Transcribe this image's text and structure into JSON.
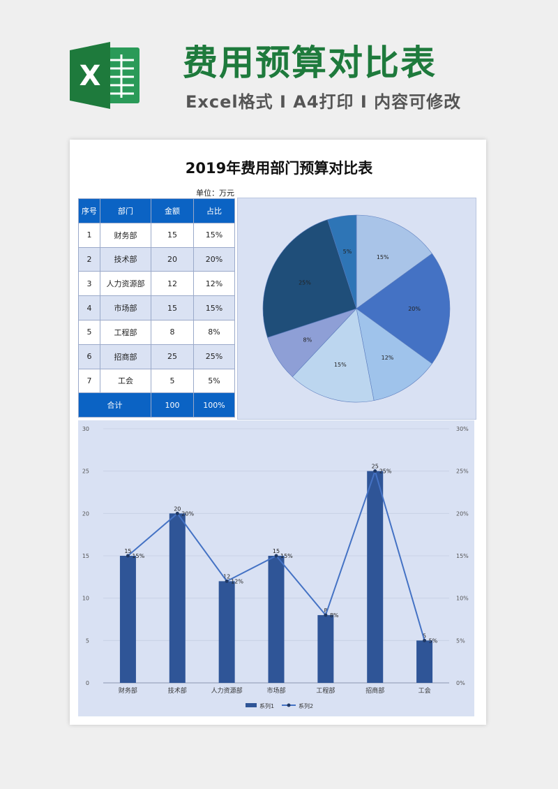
{
  "header": {
    "logo_letter": "X",
    "title": "费用预算对比表",
    "subtitle": "Excel格式 Ⅰ A4打印 Ⅰ 内容可修改"
  },
  "sheet": {
    "title": "2019年费用部门预算对比表",
    "unit": "单位：万元"
  },
  "table": {
    "headers": [
      "序号",
      "部门",
      "金额",
      "占比"
    ],
    "rows": [
      {
        "no": "1",
        "dept": "财务部",
        "amount": "15",
        "pct": "15%"
      },
      {
        "no": "2",
        "dept": "技术部",
        "amount": "20",
        "pct": "20%"
      },
      {
        "no": "3",
        "dept": "人力资源部",
        "amount": "12",
        "pct": "12%"
      },
      {
        "no": "4",
        "dept": "市场部",
        "amount": "15",
        "pct": "15%"
      },
      {
        "no": "5",
        "dept": "工程部",
        "amount": "8",
        "pct": "8%"
      },
      {
        "no": "6",
        "dept": "招商部",
        "amount": "25",
        "pct": "25%"
      },
      {
        "no": "7",
        "dept": "工会",
        "amount": "5",
        "pct": "5%"
      }
    ],
    "total": {
      "label": "合计",
      "amount": "100",
      "pct": "100%"
    }
  },
  "colors": {
    "brand_green": "#1e7a3c",
    "table_header": "#0b63c4",
    "bar": "#2f5597",
    "line": "#4472c4"
  },
  "chart_data": [
    {
      "type": "pie",
      "categories": [
        "财务部",
        "技术部",
        "人力资源部",
        "市场部",
        "工程部",
        "招商部",
        "工会"
      ],
      "values": [
        15,
        20,
        12,
        15,
        8,
        25,
        5
      ],
      "labels": [
        "15%",
        "20%",
        "12%",
        "15%",
        "8%",
        "25%",
        "5%"
      ],
      "colors": [
        "#a9c4e8",
        "#4472c4",
        "#9fc3eb",
        "#bcd6ef",
        "#8e9fd6",
        "#1f4e79",
        "#2e75b6"
      ]
    },
    {
      "type": "bar",
      "categories": [
        "财务部",
        "技术部",
        "人力资源部",
        "市场部",
        "工程部",
        "招商部",
        "工会"
      ],
      "series": [
        {
          "name": "系列1",
          "type": "bar",
          "values": [
            15,
            20,
            12,
            15,
            8,
            25,
            5
          ],
          "labels": [
            "15",
            "20",
            "12",
            "15",
            "8",
            "25",
            "5"
          ]
        },
        {
          "name": "系列2",
          "type": "line",
          "values": [
            0.15,
            0.2,
            0.12,
            0.15,
            0.08,
            0.25,
            0.05
          ],
          "labels": [
            "15%",
            "20%",
            "12%",
            "15%",
            "8%",
            "25%",
            "5%"
          ]
        }
      ],
      "ylim": [
        0,
        30
      ],
      "yticks": [
        "0",
        "5",
        "10",
        "15",
        "20",
        "25",
        "30"
      ],
      "y2lim": [
        0,
        0.3
      ],
      "y2ticks": [
        "0%",
        "5%",
        "10%",
        "15%",
        "20%",
        "25%",
        "30%"
      ],
      "grid": true,
      "legend": "bottom"
    }
  ]
}
